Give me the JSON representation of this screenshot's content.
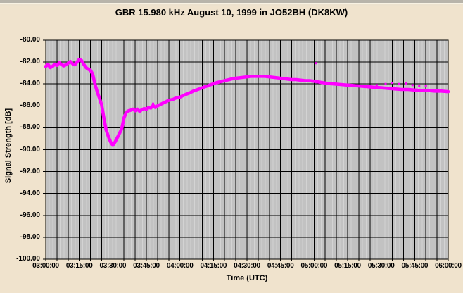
{
  "window": {
    "background_color": "#F0E3CD",
    "top_strip_color": "#B8B4AA"
  },
  "chart_data": {
    "type": "line",
    "title": "GBR 15.980 kHz August 10, 1999 in JO52BH (DK8KW)",
    "xlabel": "Time (UTC)",
    "ylabel": "Signal Strength [dB]",
    "x_tick_labels": [
      "03:00:00",
      "03:15:00",
      "03:30:00",
      "03:45:00",
      "04:00:00",
      "04:15:00",
      "04:30:00",
      "04:45:00",
      "05:00:00",
      "05:15:00",
      "05:30:00",
      "05:45:00",
      "06:00:00"
    ],
    "x_range_minutes": [
      0,
      180
    ],
    "x_major_gridline_every_minutes": 5,
    "x_tick_label_every_minutes": 15,
    "y_tick_labels": [
      "-80.00",
      "-82.00",
      "-84.00",
      "-86.00",
      "-88.00",
      "-90.00",
      "-92.00",
      "-94.00",
      "-96.00",
      "-98.00",
      "-100.00"
    ],
    "ylim": [
      -100,
      -80
    ],
    "y_gridline_step_db": 2,
    "grid_on": true,
    "grid_color": "#000000",
    "plot_bg_color": "#C2C2C2",
    "legend": "none",
    "series": [
      {
        "name": "Signal Strength",
        "color": "#FF00FF",
        "points_time_min_db": [
          [
            0,
            -82.4
          ],
          [
            1,
            -82.2
          ],
          [
            2,
            -82.5
          ],
          [
            3,
            -82.4
          ],
          [
            4,
            -82.2
          ],
          [
            5,
            -82.3
          ],
          [
            6,
            -82.05
          ],
          [
            7,
            -82.2
          ],
          [
            8,
            -82.35
          ],
          [
            9,
            -82.25
          ],
          [
            10,
            -82.1
          ],
          [
            11,
            -81.95
          ],
          [
            12,
            -82.15
          ],
          [
            13,
            -82.25
          ],
          [
            14,
            -82.0
          ],
          [
            15,
            -81.75
          ],
          [
            16,
            -81.85
          ],
          [
            17,
            -82.2
          ],
          [
            18,
            -82.5
          ],
          [
            19,
            -82.65
          ],
          [
            20,
            -82.75
          ],
          [
            21,
            -83.1
          ],
          [
            22,
            -84.0
          ],
          [
            23,
            -84.7
          ],
          [
            24,
            -85.3
          ],
          [
            25,
            -85.9
          ],
          [
            26,
            -87.1
          ],
          [
            27,
            -88.2
          ],
          [
            28,
            -88.8
          ],
          [
            29,
            -89.3
          ],
          [
            30,
            -89.6
          ],
          [
            31,
            -89.3
          ],
          [
            32,
            -88.9
          ],
          [
            33,
            -88.5
          ],
          [
            34,
            -88.1
          ],
          [
            35,
            -87.1
          ],
          [
            36,
            -86.6
          ],
          [
            37,
            -86.45
          ],
          [
            38,
            -86.4
          ],
          [
            39,
            -86.3
          ],
          [
            40,
            -86.45
          ],
          [
            41,
            -86.3
          ],
          [
            42,
            -86.5
          ],
          [
            43,
            -86.35
          ],
          [
            44,
            -86.25
          ],
          [
            45,
            -86.3
          ],
          [
            46,
            -86.15
          ],
          [
            47,
            -86.2
          ],
          [
            48,
            -85.95
          ],
          [
            49,
            -86.15
          ],
          [
            50,
            -86.0
          ],
          [
            51,
            -85.9
          ],
          [
            52,
            -85.8
          ],
          [
            53,
            -85.7
          ],
          [
            54,
            -85.6
          ],
          [
            55,
            -85.5
          ],
          [
            56,
            -85.45
          ],
          [
            57,
            -85.4
          ],
          [
            58,
            -85.3
          ],
          [
            59,
            -85.25
          ],
          [
            60,
            -85.2
          ],
          [
            62,
            -85.0
          ],
          [
            64,
            -84.85
          ],
          [
            66,
            -84.65
          ],
          [
            68,
            -84.5
          ],
          [
            70,
            -84.35
          ],
          [
            72,
            -84.2
          ],
          [
            74,
            -84.05
          ],
          [
            76,
            -83.9
          ],
          [
            78,
            -83.8
          ],
          [
            80,
            -83.7
          ],
          [
            82,
            -83.6
          ],
          [
            84,
            -83.5
          ],
          [
            86,
            -83.45
          ],
          [
            88,
            -83.4
          ],
          [
            90,
            -83.35
          ],
          [
            92,
            -83.3
          ],
          [
            94,
            -83.3
          ],
          [
            96,
            -83.3
          ],
          [
            98,
            -83.3
          ],
          [
            100,
            -83.35
          ],
          [
            102,
            -83.4
          ],
          [
            104,
            -83.45
          ],
          [
            106,
            -83.5
          ],
          [
            108,
            -83.55
          ],
          [
            110,
            -83.6
          ],
          [
            112,
            -83.6
          ],
          [
            114,
            -83.65
          ],
          [
            116,
            -83.7
          ],
          [
            118,
            -83.7
          ],
          [
            120,
            -83.75
          ],
          [
            123,
            -83.85
          ],
          [
            126,
            -83.95
          ],
          [
            129,
            -84.0
          ],
          [
            132,
            -84.05
          ],
          [
            135,
            -84.1
          ],
          [
            138,
            -84.15
          ],
          [
            141,
            -84.2
          ],
          [
            144,
            -84.25
          ],
          [
            147,
            -84.3
          ],
          [
            150,
            -84.35
          ],
          [
            153,
            -84.4
          ],
          [
            156,
            -84.45
          ],
          [
            159,
            -84.5
          ],
          [
            162,
            -84.5
          ],
          [
            165,
            -84.55
          ],
          [
            168,
            -84.6
          ],
          [
            171,
            -84.6
          ],
          [
            174,
            -84.65
          ],
          [
            177,
            -84.65
          ],
          [
            180,
            -84.7
          ]
        ]
      }
    ],
    "outlier_points_time_min_db": [
      [
        121,
        -82.1
      ],
      [
        48,
        -85.8
      ],
      [
        148,
        -84.1
      ],
      [
        152,
        -84.0
      ],
      [
        155,
        -83.9
      ],
      [
        158,
        -84.0
      ],
      [
        161,
        -83.95
      ],
      [
        164,
        -84.1
      ],
      [
        167,
        -84.15
      ],
      [
        170,
        -84.2
      ]
    ]
  }
}
